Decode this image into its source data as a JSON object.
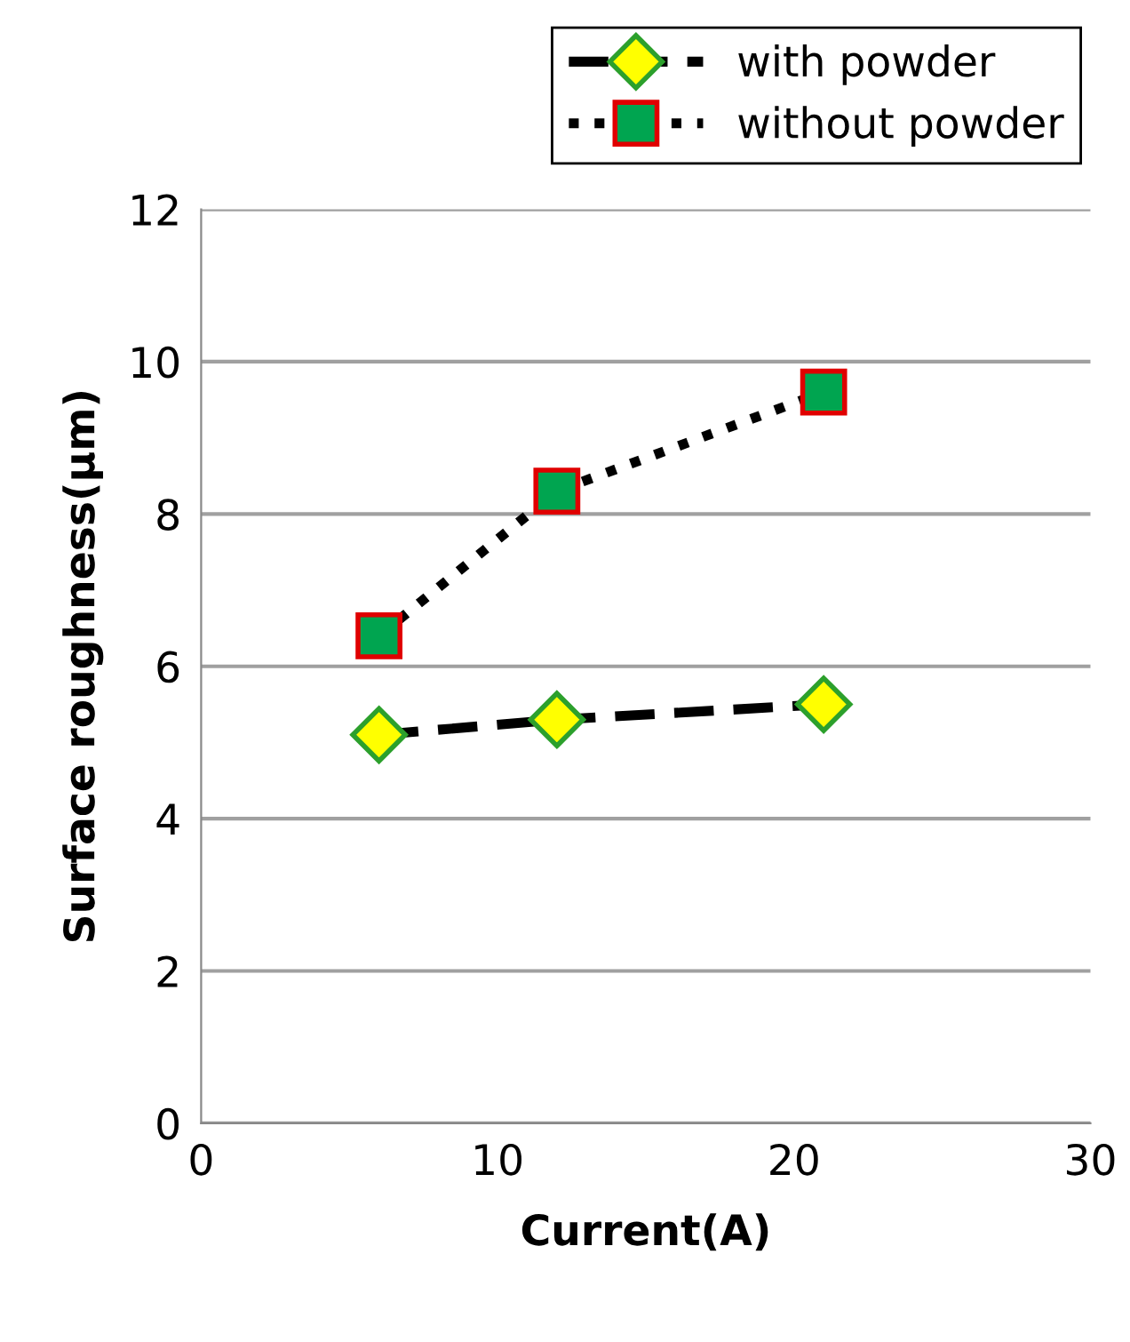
{
  "chart_data": {
    "type": "line",
    "xlabel": "Current(A)",
    "ylabel": "Surface roughness(μm)",
    "xlim": [
      0,
      30
    ],
    "xticks": [
      0,
      10,
      20,
      30
    ],
    "ylim": [
      0,
      12
    ],
    "yticks": [
      0,
      2,
      4,
      6,
      8,
      10,
      12
    ],
    "grid": "y",
    "legend": "top right",
    "series": [
      {
        "name": "with powder",
        "color": "#ffff00",
        "x": [
          6,
          12,
          21
        ],
        "values": [
          5.1,
          5.3,
          5.5
        ],
        "marker": "diamond",
        "line_style": "dashed"
      },
      {
        "name": "without powder",
        "color": "#00a550",
        "x": [
          6,
          12,
          21
        ],
        "values": [
          6.4,
          8.3,
          9.6
        ],
        "marker": "square",
        "line_style": "dotted"
      }
    ]
  }
}
